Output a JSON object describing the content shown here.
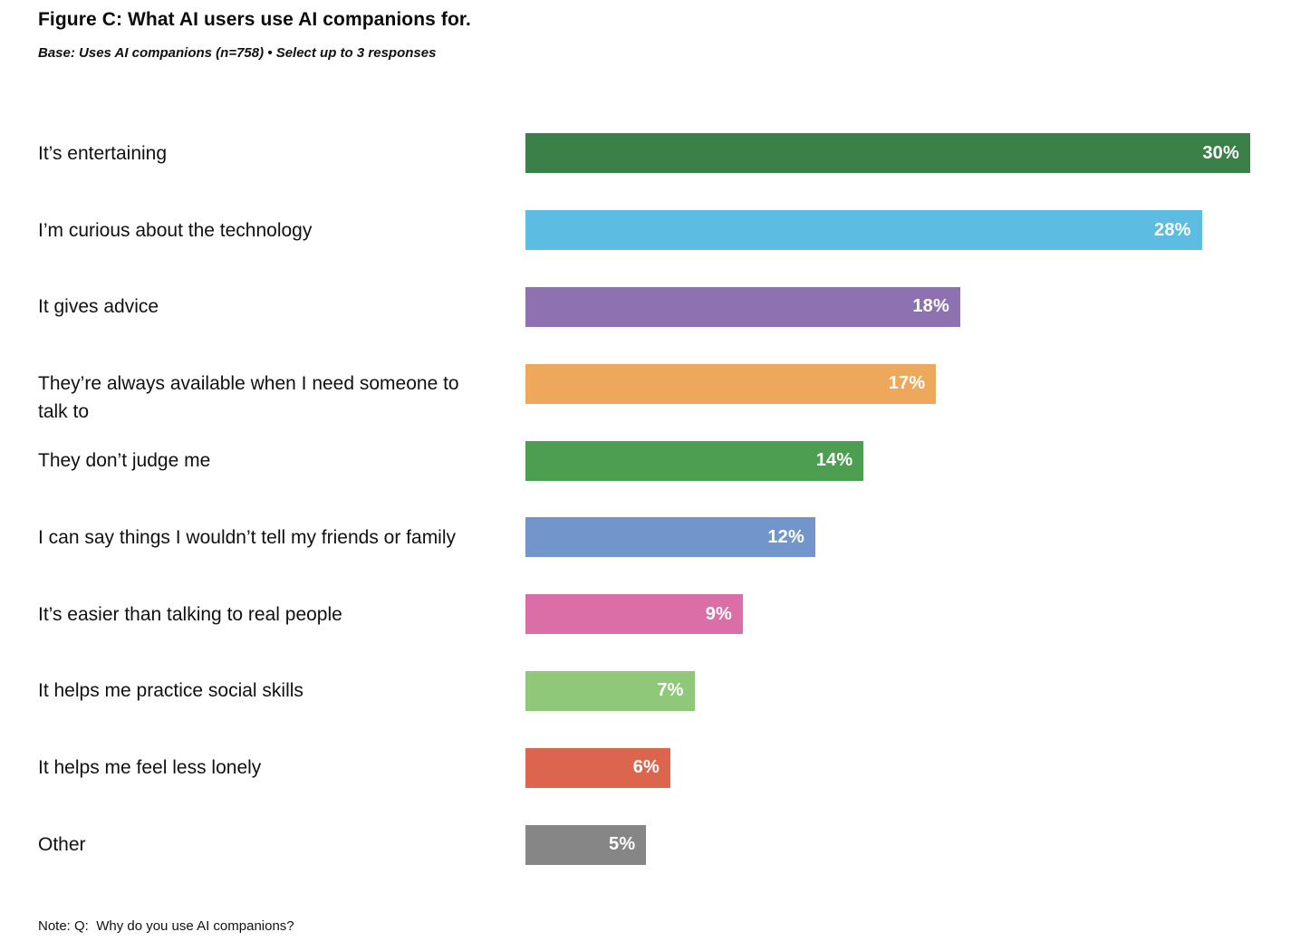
{
  "header": {
    "title": "Figure C: What AI users use AI companions for.",
    "subtitle": "Base: Uses AI companions (n=758) • Select up to 3 responses"
  },
  "note": "Note: Q:  Why do you use AI companions?",
  "chart_data": {
    "type": "bar",
    "orientation": "horizontal",
    "title": "Figure C: What AI users use AI companions for.",
    "subtitle": "Base: Uses AI companions (n=758) • Select up to 3 responses",
    "categories": [
      "It’s entertaining",
      "I’m curious about the technology",
      "It gives advice",
      "They’re always available when I need someone to talk to",
      "They don’t judge me",
      "I can say things I wouldn’t tell my friends or family",
      "It’s easier than talking to real people",
      "It helps me practice social skills",
      "It helps me feel less lonely",
      "Other"
    ],
    "values": [
      30,
      28,
      18,
      17,
      14,
      12,
      9,
      7,
      6,
      5
    ],
    "value_labels": [
      "30%",
      "28%",
      "18%",
      "17%",
      "14%",
      "12%",
      "9%",
      "7%",
      "6%",
      "5%"
    ],
    "value_suffix": "%",
    "xlim": [
      0,
      30
    ],
    "grid": false,
    "legend": false,
    "data_label_position": "inside-end",
    "data_label_color": "#ffffff",
    "bar_colors": [
      "#3b8049",
      "#5cbce1",
      "#8e71b0",
      "#eda85c",
      "#4e9e51",
      "#7295cc",
      "#d96fa6",
      "#8fc878",
      "#db664d",
      "#868686"
    ],
    "note": "Note: Q:  Why do you use AI companions?"
  }
}
